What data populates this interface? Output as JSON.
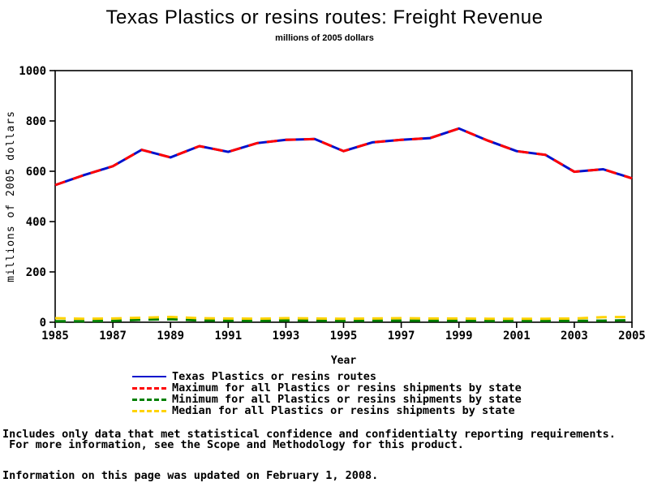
{
  "title": "Texas Plastics or resins routes: Freight Revenue",
  "subtitle": "millions of 2005 dollars",
  "chart_data": {
    "type": "line",
    "title": "Texas Plastics or resins routes: Freight Revenue",
    "subtitle": "millions of 2005 dollars",
    "xlabel": "Year",
    "ylabel": "millions of 2005 dollars",
    "xlim": [
      1985,
      2005
    ],
    "ylim": [
      0,
      1000
    ],
    "xticks": [
      1985,
      1987,
      1989,
      1991,
      1993,
      1995,
      1997,
      1999,
      2001,
      2003,
      2005
    ],
    "yticks": [
      0,
      200,
      400,
      600,
      800,
      1000
    ],
    "grid": false,
    "legend_position": "bottom",
    "x": [
      1985,
      1986,
      1987,
      1988,
      1989,
      1990,
      1991,
      1992,
      1993,
      1994,
      1995,
      1996,
      1997,
      1998,
      1999,
      2000,
      2001,
      2002,
      2003,
      2004,
      2005
    ],
    "series": [
      {
        "key": "texas",
        "name": "Texas Plastics or resins routes",
        "color": "#0011cc",
        "dash": "solid",
        "values": [
          545,
          585,
          620,
          685,
          655,
          700,
          677,
          712,
          725,
          728,
          680,
          715,
          725,
          732,
          770,
          722,
          680,
          665,
          598,
          608,
          572
        ]
      },
      {
        "key": "maximum",
        "name": "Maximum for all Plastics or resins shipments by state",
        "color": "#ff0000",
        "dash": "dashed",
        "values": [
          545,
          585,
          620,
          685,
          655,
          700,
          677,
          712,
          725,
          728,
          680,
          715,
          725,
          732,
          770,
          722,
          680,
          665,
          598,
          608,
          572
        ]
      },
      {
        "key": "minimum",
        "name": "Minimum for all Plastics or resins shipments by state",
        "color": "#008000",
        "dash": "dashed",
        "values": [
          4,
          4,
          5,
          10,
          12,
          7,
          6,
          5,
          7,
          6,
          5,
          6,
          6,
          6,
          6,
          5,
          5,
          5,
          5,
          6,
          8
        ]
      },
      {
        "key": "median",
        "name": "Median for all Plastics or resins shipments by state",
        "color": "#ffd300",
        "dash": "dashed",
        "values": [
          16,
          14,
          15,
          18,
          21,
          16,
          15,
          14,
          16,
          15,
          14,
          15,
          16,
          15,
          15,
          14,
          14,
          14,
          15,
          20,
          21
        ]
      }
    ]
  },
  "footer": {
    "line1": "Includes only data that met statistical confidence and confidentialty reporting requirements.",
    "line2": " For more information, see the Scope and Methodology for this product.",
    "updated": "Information on this page was updated on February 1, 2008."
  }
}
